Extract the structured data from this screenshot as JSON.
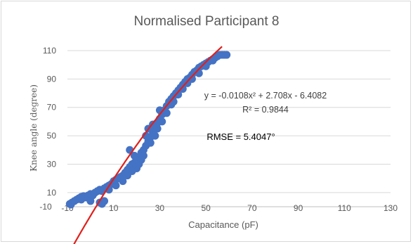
{
  "chart_data": {
    "type": "scatter",
    "title": "Normalised Participant 8",
    "xlabel": "Capacitance (pF)",
    "ylabel": "Knee angle (degree)",
    "xlim": [
      -10,
      130
    ],
    "ylim": [
      0,
      110
    ],
    "x_ticks": [
      "-10",
      "10",
      "30",
      "50",
      "70",
      "90",
      "110",
      "130"
    ],
    "y_ticks": [
      "10",
      "30",
      "50",
      "70",
      "90",
      "110"
    ],
    "y_tick_values": [
      10,
      30,
      50,
      70,
      90,
      110
    ],
    "x_tick_values": [
      -10,
      10,
      30,
      50,
      70,
      90,
      110,
      130
    ],
    "stray_tick_label": "-10",
    "grid": "horizontal",
    "legend": "none",
    "series": [
      {
        "kind": "points",
        "color": "#4472c4",
        "points": [
          [
            -9,
            2
          ],
          [
            -8.5,
            1.5
          ],
          [
            -8,
            3
          ],
          [
            -7,
            4
          ],
          [
            -6,
            5
          ],
          [
            -5,
            6
          ],
          [
            -4,
            7
          ],
          [
            -3,
            7.5
          ],
          [
            -2,
            6.5
          ],
          [
            -1,
            8
          ],
          [
            0,
            9
          ],
          [
            1,
            8
          ],
          [
            2,
            10
          ],
          [
            3,
            11
          ],
          [
            4,
            12
          ],
          [
            5,
            11
          ],
          [
            6,
            13
          ],
          [
            7,
            14
          ],
          [
            8,
            15
          ],
          [
            9,
            16
          ],
          [
            10,
            18
          ],
          [
            11,
            19
          ],
          [
            12,
            20
          ],
          [
            13,
            21
          ],
          [
            14,
            22
          ],
          [
            15,
            24
          ],
          [
            16,
            26
          ],
          [
            17,
            28
          ],
          [
            18,
            30
          ],
          [
            19,
            31
          ],
          [
            20,
            33
          ],
          [
            20,
            27
          ],
          [
            21,
            35
          ],
          [
            22,
            38
          ],
          [
            23,
            40
          ],
          [
            24,
            43
          ],
          [
            25,
            46
          ],
          [
            26,
            49
          ],
          [
            27,
            52
          ],
          [
            28,
            56
          ],
          [
            29,
            59
          ],
          [
            30,
            62
          ],
          [
            31,
            65
          ],
          [
            32,
            68
          ],
          [
            33,
            71
          ],
          [
            34,
            74
          ],
          [
            35,
            76
          ],
          [
            36,
            78
          ],
          [
            37,
            80
          ],
          [
            38,
            82
          ],
          [
            39,
            84
          ],
          [
            40,
            86
          ],
          [
            41,
            88
          ],
          [
            42,
            90
          ],
          [
            43,
            91
          ],
          [
            44,
            93
          ],
          [
            45,
            95
          ],
          [
            46,
            96
          ],
          [
            47,
            98
          ],
          [
            48,
            99
          ],
          [
            49,
            100
          ],
          [
            50,
            101
          ],
          [
            51,
            102
          ],
          [
            52,
            103
          ],
          [
            53,
            104
          ],
          [
            54,
            105
          ],
          [
            55,
            106
          ],
          [
            56,
            107
          ],
          [
            57,
            107
          ],
          [
            58,
            107
          ],
          [
            59,
            107
          ],
          [
            4,
            3
          ],
          [
            5,
            2
          ],
          [
            6,
            4
          ],
          [
            -4,
            5
          ],
          [
            0,
            4
          ],
          [
            8,
            12
          ],
          [
            11,
            15
          ],
          [
            14,
            18
          ],
          [
            16,
            22
          ],
          [
            18,
            25
          ],
          [
            19,
            36
          ],
          [
            21,
            30
          ],
          [
            22,
            33
          ],
          [
            23,
            36
          ],
          [
            24,
            50
          ],
          [
            26,
            45
          ],
          [
            27,
            58
          ],
          [
            28,
            50
          ],
          [
            29,
            55
          ],
          [
            30,
            68
          ],
          [
            31,
            60
          ],
          [
            33,
            66
          ],
          [
            35,
            72
          ],
          [
            36,
            74
          ],
          [
            38,
            79
          ],
          [
            40,
            83
          ],
          [
            42,
            87
          ],
          [
            44,
            90
          ],
          [
            47,
            94
          ],
          [
            50,
            99
          ],
          [
            53,
            103
          ],
          [
            17,
            40
          ],
          [
            25,
            55
          ]
        ]
      },
      {
        "kind": "trendline",
        "color": "#e0201b",
        "equation": "y = -0.0108x² + 2.708x - 6.4082",
        "coefficients": {
          "a": -0.0108,
          "b": 2.708,
          "c": -6.4082
        },
        "x_range": [
          -9,
          57
        ]
      }
    ],
    "annotations": {
      "equation": "y = -0.0108x² + 2.708x - 6.4082",
      "r_squared": "R² = 0.9844",
      "rmse": "RMSE = 5.4047°"
    }
  }
}
